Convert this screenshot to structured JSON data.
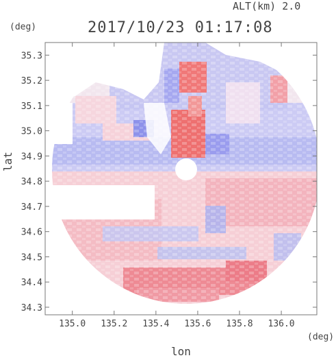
{
  "header": {
    "altitude": "ALT(km) 2.0",
    "datetime": "2017/10/23 01:17:08"
  },
  "axes": {
    "x_label": "lon",
    "y_label": "lat",
    "x_unit": "(deg)",
    "y_unit": "(deg)",
    "x_ticks": [
      "135.0",
      "135.2",
      "135.4",
      "135.6",
      "135.8",
      "136.0"
    ],
    "y_ticks": [
      "35.3",
      "35.2",
      "35.1",
      "35.0",
      "34.9",
      "34.8",
      "34.7",
      "34.6",
      "34.5",
      "34.4",
      "34.3"
    ],
    "x_range": [
      134.87,
      136.17
    ],
    "y_range": [
      34.27,
      35.35
    ]
  },
  "colors": {
    "positive": "#f08888",
    "negative": "#8888f0",
    "neutral": "#f4eef4",
    "frame": "#777777"
  }
}
